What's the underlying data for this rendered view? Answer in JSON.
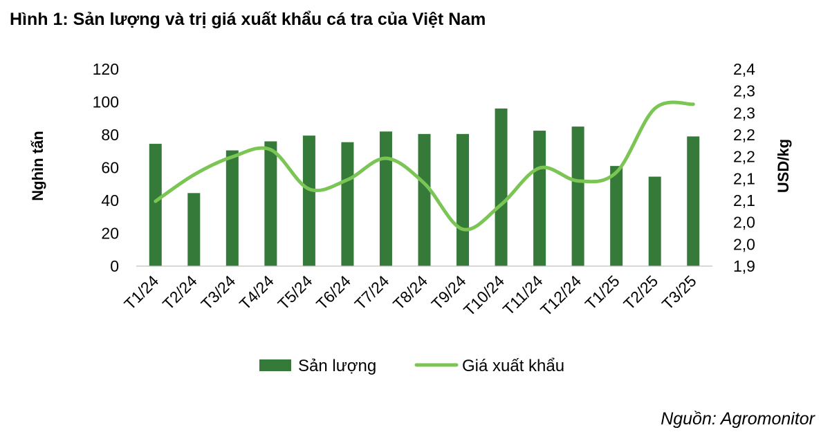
{
  "title": "Hình 1: Sản lượng và trị giá xuất khẩu cá tra của Việt Nam",
  "source": "Nguồn: Agromonitor",
  "colors": {
    "bar": "#357a38",
    "line": "#7ac553"
  },
  "chart_data": {
    "type": "bar",
    "categories": [
      "T1/24",
      "T2/24",
      "T3/24",
      "T4/24",
      "T5/24",
      "T6/24",
      "T7/24",
      "T8/24",
      "T9/24",
      "T10/24",
      "T11/24",
      "T12/24",
      "T1/25",
      "T2/25",
      "T3/25"
    ],
    "series": [
      {
        "name": "Sản lượng",
        "type": "bar",
        "axis": "left",
        "values": [
          74.5,
          44.5,
          70.5,
          76,
          79.5,
          75.5,
          82,
          80.5,
          80.5,
          96,
          82.5,
          85,
          61,
          54.5,
          79
        ]
      },
      {
        "name": "Giá xuất khẩu",
        "type": "line",
        "axis": "right",
        "values": [
          2.081,
          2.155,
          2.205,
          2.225,
          2.115,
          2.141,
          2.201,
          2.131,
          2.003,
          2.072,
          2.174,
          2.138,
          2.162,
          2.34,
          2.352
        ]
      }
    ],
    "ylabel": "Nghìn tấn",
    "ylim": [
      0,
      120
    ],
    "yticks": [
      "0",
      "20",
      "40",
      "60",
      "80",
      "100",
      "120"
    ],
    "y2label": "USD/kg",
    "y2lim": [
      1.9,
      2.45
    ],
    "y2ticks": [
      "1,9",
      "2,0",
      "2,0",
      "2,1",
      "2,1",
      "2,2",
      "2,2",
      "2,3",
      "2,3",
      "2,4"
    ],
    "grid": false,
    "legend_position": "bottom"
  }
}
